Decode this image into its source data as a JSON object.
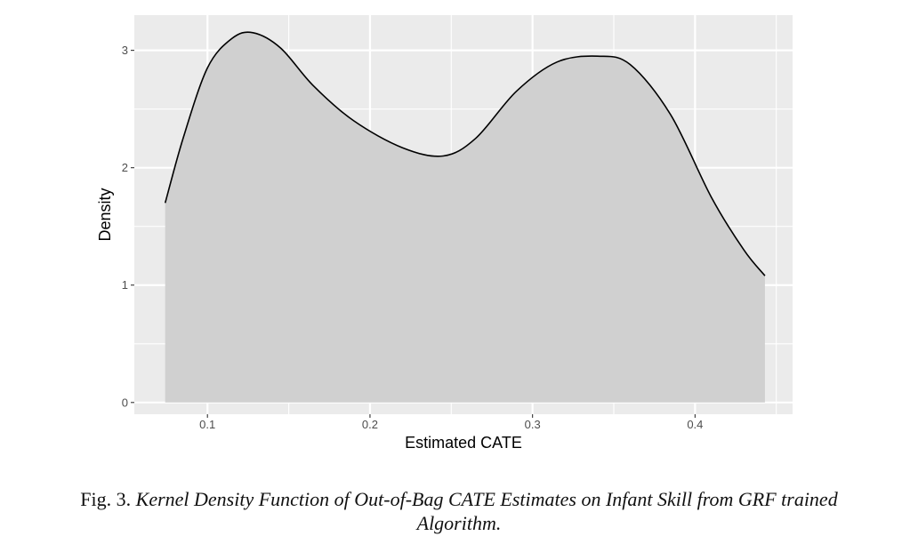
{
  "chart_data": {
    "type": "area",
    "xlabel": "Estimated CATE",
    "ylabel": "Density",
    "xlim": [
      0.055,
      0.46
    ],
    "ylim": [
      -0.1,
      3.3
    ],
    "xticks": [
      0.1,
      0.2,
      0.3,
      0.4
    ],
    "xtick_labels": [
      "0.1",
      "0.2",
      "0.3",
      "0.4"
    ],
    "yticks": [
      0,
      1,
      2,
      3
    ],
    "ytick_labels": [
      "0",
      "1",
      "2",
      "3"
    ],
    "grid": true,
    "colors": {
      "panel": "#EBEBEB",
      "grid": "#FFFFFF",
      "fill": "#D0D0D0",
      "line": "#000000"
    },
    "series": [
      {
        "x": [
          0.074,
          0.085,
          0.1,
          0.115,
          0.128,
          0.145,
          0.165,
          0.19,
          0.22,
          0.245,
          0.265,
          0.29,
          0.315,
          0.34,
          0.36,
          0.385,
          0.41,
          0.43,
          0.443
        ],
        "y": [
          1.7,
          2.25,
          2.85,
          3.1,
          3.15,
          3.02,
          2.7,
          2.4,
          2.17,
          2.1,
          2.25,
          2.65,
          2.9,
          2.95,
          2.88,
          2.45,
          1.75,
          1.3,
          1.08
        ]
      }
    ]
  },
  "caption": {
    "label": "Fig. 3.",
    "text_line1": "Kernel Density Function of Out-of-Bag CATE Estimates on Infant Skill from GRF trained",
    "text_line2": "Algorithm."
  }
}
